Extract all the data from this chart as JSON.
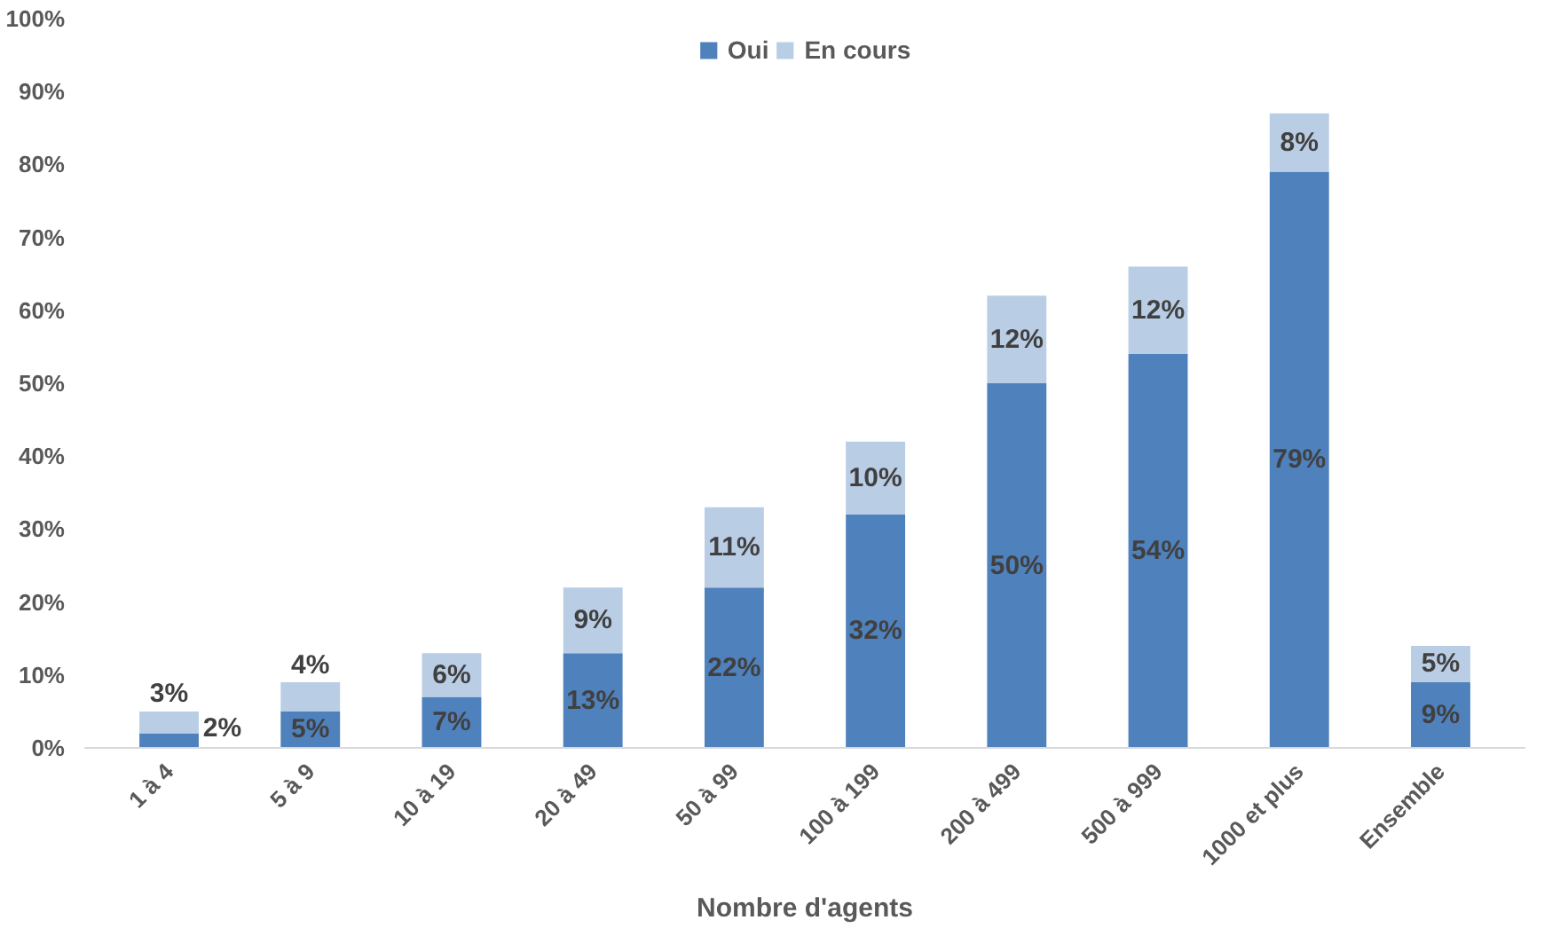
{
  "chart_data": {
    "type": "bar",
    "stacked": true,
    "xlabel": "Nombre d'agents",
    "categories": [
      "1 à 4",
      "5 à 9",
      "10 à 19",
      "20 à 49",
      "50 à 99",
      "100 à 199",
      "200 à 499",
      "500 à 999",
      "1000 et plus",
      "Ensemble"
    ],
    "series": [
      {
        "name": "Oui",
        "color": "#4f81bd",
        "values": [
          2,
          5,
          7,
          13,
          22,
          32,
          50,
          54,
          79,
          9
        ],
        "value_labels": [
          "2%",
          "5%",
          "7%",
          "13%",
          "22%",
          "32%",
          "50%",
          "54%",
          "79%",
          "9%"
        ]
      },
      {
        "name": "En cours",
        "color": "#b9cde5",
        "values": [
          3,
          4,
          6,
          9,
          11,
          10,
          12,
          12,
          8,
          5
        ],
        "value_labels": [
          "3%",
          "4%",
          "6%",
          "9%",
          "11%",
          "10%",
          "12%",
          "12%",
          "8%",
          "5%"
        ]
      }
    ],
    "ylim": [
      0,
      100
    ],
    "yticks": [
      {
        "value": 0,
        "label": "0%"
      },
      {
        "value": 10,
        "label": "10%"
      },
      {
        "value": 20,
        "label": "20%"
      },
      {
        "value": 30,
        "label": "30%"
      },
      {
        "value": 40,
        "label": "40%"
      },
      {
        "value": 50,
        "label": "50%"
      },
      {
        "value": 60,
        "label": "60%"
      },
      {
        "value": 70,
        "label": "70%"
      },
      {
        "value": 80,
        "label": "80%"
      },
      {
        "value": 90,
        "label": "90%"
      },
      {
        "value": 100,
        "label": "100%"
      }
    ],
    "grid": false,
    "legend": "top"
  }
}
